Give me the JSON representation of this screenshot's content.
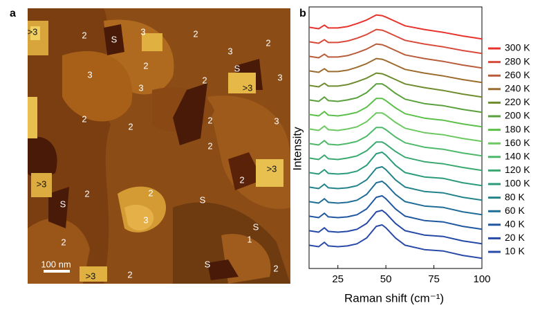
{
  "image": {
    "panel_label": "a",
    "scale_bar": "100 nm",
    "labels": [
      ">3",
      "2",
      "S",
      "3",
      "2",
      "2",
      "3",
      "S",
      "2",
      "3",
      ">3",
      "3",
      "3",
      "2",
      "2",
      "2",
      "2",
      "3",
      "2",
      ">3",
      ">3",
      "2",
      "S",
      "2",
      "2",
      "S",
      "3",
      "S",
      "1",
      "2",
      "S",
      ">3",
      "2",
      "2"
    ]
  },
  "chart_data": {
    "type": "line",
    "panel_label": "b",
    "x_label": "Raman shift (cm⁻¹)",
    "y_label": "Intensity",
    "xlim": [
      10,
      100
    ],
    "xticks": [
      25,
      50,
      75,
      100
    ],
    "ylim": [
      -0.5,
      17.5
    ],
    "x": [
      10,
      15,
      18,
      20,
      25,
      30,
      35,
      40,
      45,
      48,
      50,
      55,
      60,
      70,
      80,
      90,
      100
    ],
    "series": [
      {
        "name": "300 K",
        "color": "#e8322c",
        "values": [
          16.1,
          16.0,
          16.25,
          16.05,
          16.05,
          16.15,
          16.35,
          16.6,
          16.95,
          16.9,
          16.8,
          16.5,
          16.2,
          15.95,
          15.75,
          15.5,
          15.3
        ]
      },
      {
        "name": "280 K",
        "color": "#d84a3a",
        "values": [
          15.1,
          15.0,
          15.25,
          15.05,
          15.05,
          15.15,
          15.35,
          15.6,
          15.95,
          15.9,
          15.8,
          15.5,
          15.2,
          14.95,
          14.75,
          14.5,
          14.3
        ]
      },
      {
        "name": "260 K",
        "color": "#b85c3a",
        "values": [
          14.1,
          14.0,
          14.25,
          14.05,
          14.05,
          14.15,
          14.35,
          14.6,
          14.95,
          14.9,
          14.8,
          14.5,
          14.2,
          13.95,
          13.75,
          13.5,
          13.3
        ]
      },
      {
        "name": "240 K",
        "color": "#9c6b2e",
        "values": [
          13.1,
          13.0,
          13.25,
          13.05,
          13.05,
          13.15,
          13.35,
          13.6,
          13.95,
          13.9,
          13.8,
          13.5,
          13.2,
          12.95,
          12.75,
          12.5,
          12.3
        ]
      },
      {
        "name": "220 K",
        "color": "#6e8b2e",
        "values": [
          12.1,
          12.0,
          12.25,
          12.05,
          12.05,
          12.15,
          12.35,
          12.6,
          12.95,
          12.9,
          12.8,
          12.5,
          12.2,
          11.95,
          11.75,
          11.5,
          11.3
        ]
      },
      {
        "name": "200 K",
        "color": "#5aa03a",
        "values": [
          11.1,
          11.0,
          11.3,
          11.05,
          11.0,
          11.1,
          11.25,
          11.6,
          12.2,
          12.2,
          12.05,
          11.55,
          11.15,
          10.85,
          10.7,
          10.45,
          10.25
        ]
      },
      {
        "name": "180 K",
        "color": "#5cbf4a",
        "values": [
          10.1,
          10.0,
          10.3,
          10.05,
          10.0,
          10.1,
          10.25,
          10.6,
          11.2,
          11.2,
          11.05,
          10.55,
          10.15,
          9.85,
          9.7,
          9.45,
          9.25
        ]
      },
      {
        "name": "160 K",
        "color": "#6cc860",
        "values": [
          9.1,
          9.0,
          9.3,
          9.05,
          9.0,
          9.1,
          9.25,
          9.6,
          10.2,
          10.2,
          10.05,
          9.55,
          9.15,
          8.85,
          8.7,
          8.45,
          8.25
        ]
      },
      {
        "name": "140 K",
        "color": "#4cb868",
        "values": [
          8.1,
          8.0,
          8.3,
          8.05,
          8.0,
          8.1,
          8.25,
          8.6,
          9.2,
          9.2,
          9.05,
          8.55,
          8.15,
          7.85,
          7.7,
          7.45,
          7.25
        ]
      },
      {
        "name": "120 K",
        "color": "#3aa870",
        "values": [
          7.1,
          7.0,
          7.3,
          7.05,
          7.0,
          7.1,
          7.25,
          7.6,
          8.2,
          8.2,
          8.05,
          7.55,
          7.15,
          6.85,
          6.7,
          6.45,
          6.25
        ]
      },
      {
        "name": "100 K",
        "color": "#2a9a7a",
        "values": [
          6.1,
          6.0,
          6.3,
          6.05,
          6.0,
          6.05,
          6.2,
          6.6,
          7.4,
          7.5,
          7.3,
          6.6,
          6.1,
          5.8,
          5.7,
          5.4,
          5.2
        ]
      },
      {
        "name": "80 K",
        "color": "#23828a",
        "values": [
          5.1,
          5.0,
          5.3,
          5.05,
          5.0,
          5.05,
          5.2,
          5.6,
          6.4,
          6.5,
          6.3,
          5.6,
          5.1,
          4.8,
          4.7,
          4.4,
          4.2
        ]
      },
      {
        "name": "60 K",
        "color": "#1f6c96",
        "values": [
          4.1,
          4.0,
          4.3,
          4.05,
          4.0,
          4.05,
          4.2,
          4.6,
          5.4,
          5.5,
          5.3,
          4.6,
          4.1,
          3.8,
          3.7,
          3.4,
          3.2
        ]
      },
      {
        "name": "40 K",
        "color": "#2057a0",
        "values": [
          3.1,
          3.0,
          3.3,
          3.05,
          3.0,
          3.05,
          3.2,
          3.6,
          4.4,
          4.5,
          4.3,
          3.6,
          3.1,
          2.8,
          2.7,
          2.4,
          2.2
        ]
      },
      {
        "name": "20 K",
        "color": "#2448a5",
        "values": [
          2.1,
          2.0,
          2.3,
          2.05,
          2.0,
          2.05,
          2.2,
          2.6,
          3.4,
          3.5,
          3.3,
          2.6,
          2.1,
          1.8,
          1.7,
          1.4,
          1.2
        ]
      },
      {
        "name": "10 K",
        "color": "#2a4aa8",
        "values": [
          1.1,
          1.0,
          1.3,
          1.05,
          1.0,
          1.05,
          1.2,
          1.6,
          2.4,
          2.5,
          2.3,
          1.6,
          1.1,
          0.8,
          0.7,
          0.4,
          0.2
        ]
      }
    ]
  }
}
